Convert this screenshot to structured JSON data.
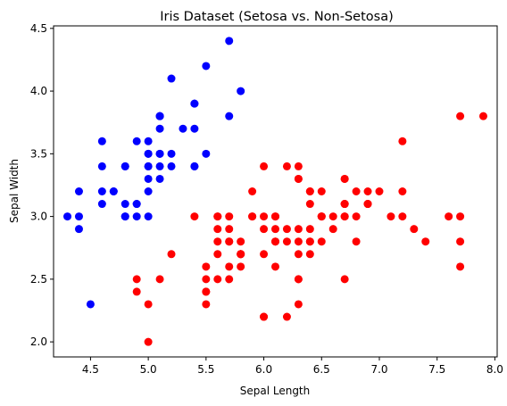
{
  "chart_data": {
    "type": "scatter",
    "title": "Iris Dataset (Setosa vs. Non-Setosa)",
    "xlabel": "Sepal Length",
    "ylabel": "Sepal Width",
    "xlim": [
      4.18,
      8.02
    ],
    "ylim": [
      1.88,
      4.52
    ],
    "grid": false,
    "xticks": [
      "4.5",
      "5.0",
      "5.5",
      "6.0",
      "6.5",
      "7.0",
      "7.5",
      "8.0"
    ],
    "yticks": [
      "2.0",
      "2.5",
      "3.0",
      "3.5",
      "4.0",
      "4.5"
    ],
    "series": [
      {
        "color": "#0000ff",
        "points": [
          [
            5.1,
            3.5
          ],
          [
            4.9,
            3.0
          ],
          [
            4.7,
            3.2
          ],
          [
            4.6,
            3.1
          ],
          [
            5.0,
            3.6
          ],
          [
            5.4,
            3.9
          ],
          [
            4.6,
            3.4
          ],
          [
            5.0,
            3.4
          ],
          [
            4.4,
            2.9
          ],
          [
            4.9,
            3.1
          ],
          [
            5.4,
            3.7
          ],
          [
            4.8,
            3.4
          ],
          [
            4.8,
            3.0
          ],
          [
            4.3,
            3.0
          ],
          [
            5.8,
            4.0
          ],
          [
            5.7,
            4.4
          ],
          [
            5.4,
            3.9
          ],
          [
            5.1,
            3.5
          ],
          [
            5.7,
            3.8
          ],
          [
            5.1,
            3.8
          ],
          [
            5.4,
            3.4
          ],
          [
            5.1,
            3.7
          ],
          [
            4.6,
            3.6
          ],
          [
            5.1,
            3.3
          ],
          [
            4.8,
            3.4
          ],
          [
            5.0,
            3.0
          ],
          [
            5.0,
            3.4
          ],
          [
            5.2,
            3.5
          ],
          [
            5.2,
            3.4
          ],
          [
            4.7,
            3.2
          ],
          [
            4.8,
            3.1
          ],
          [
            5.4,
            3.4
          ],
          [
            5.2,
            4.1
          ],
          [
            5.5,
            4.2
          ],
          [
            4.9,
            3.1
          ],
          [
            5.0,
            3.2
          ],
          [
            5.5,
            3.5
          ],
          [
            4.9,
            3.6
          ],
          [
            4.4,
            3.0
          ],
          [
            5.1,
            3.4
          ],
          [
            5.0,
            3.5
          ],
          [
            4.5,
            2.3
          ],
          [
            4.4,
            3.2
          ],
          [
            5.0,
            3.5
          ],
          [
            5.1,
            3.8
          ],
          [
            4.8,
            3.0
          ],
          [
            5.1,
            3.8
          ],
          [
            4.6,
            3.2
          ],
          [
            5.3,
            3.7
          ],
          [
            5.0,
            3.3
          ]
        ]
      },
      {
        "color": "#ff0000",
        "points": [
          [
            7.0,
            3.2
          ],
          [
            6.4,
            3.2
          ],
          [
            6.9,
            3.1
          ],
          [
            5.5,
            2.3
          ],
          [
            6.5,
            2.8
          ],
          [
            5.7,
            2.8
          ],
          [
            6.3,
            3.3
          ],
          [
            4.9,
            2.4
          ],
          [
            6.6,
            2.9
          ],
          [
            5.2,
            2.7
          ],
          [
            5.0,
            2.0
          ],
          [
            5.9,
            3.0
          ],
          [
            6.0,
            2.2
          ],
          [
            6.1,
            2.9
          ],
          [
            5.6,
            2.9
          ],
          [
            6.7,
            3.1
          ],
          [
            5.6,
            3.0
          ],
          [
            5.8,
            2.7
          ],
          [
            6.2,
            2.2
          ],
          [
            5.6,
            2.5
          ],
          [
            5.9,
            3.2
          ],
          [
            6.1,
            2.8
          ],
          [
            6.3,
            2.5
          ],
          [
            6.1,
            2.8
          ],
          [
            6.4,
            2.9
          ],
          [
            6.6,
            3.0
          ],
          [
            6.8,
            2.8
          ],
          [
            6.7,
            3.0
          ],
          [
            6.0,
            2.9
          ],
          [
            5.7,
            2.6
          ],
          [
            5.5,
            2.4
          ],
          [
            5.5,
            2.4
          ],
          [
            5.8,
            2.7
          ],
          [
            6.0,
            2.7
          ],
          [
            5.4,
            3.0
          ],
          [
            6.0,
            3.4
          ],
          [
            6.7,
            3.1
          ],
          [
            6.3,
            2.3
          ],
          [
            5.6,
            3.0
          ],
          [
            5.5,
            2.5
          ],
          [
            5.5,
            2.6
          ],
          [
            6.1,
            3.0
          ],
          [
            5.8,
            2.6
          ],
          [
            5.0,
            2.3
          ],
          [
            5.6,
            2.7
          ],
          [
            5.7,
            3.0
          ],
          [
            5.7,
            2.9
          ],
          [
            6.2,
            2.9
          ],
          [
            5.1,
            2.5
          ],
          [
            5.7,
            2.8
          ],
          [
            6.3,
            3.3
          ],
          [
            5.8,
            2.7
          ],
          [
            7.1,
            3.0
          ],
          [
            6.3,
            2.9
          ],
          [
            6.5,
            3.0
          ],
          [
            7.6,
            3.0
          ],
          [
            4.9,
            2.5
          ],
          [
            7.3,
            2.9
          ],
          [
            6.7,
            2.5
          ],
          [
            7.2,
            3.6
          ],
          [
            6.5,
            3.2
          ],
          [
            6.4,
            2.7
          ],
          [
            6.8,
            3.0
          ],
          [
            5.7,
            2.5
          ],
          [
            5.8,
            2.8
          ],
          [
            6.4,
            3.2
          ],
          [
            6.5,
            3.0
          ],
          [
            7.7,
            3.8
          ],
          [
            7.7,
            2.6
          ],
          [
            6.0,
            2.2
          ],
          [
            6.9,
            3.2
          ],
          [
            5.6,
            2.8
          ],
          [
            7.7,
            2.8
          ],
          [
            6.3,
            2.7
          ],
          [
            6.7,
            3.3
          ],
          [
            7.2,
            3.2
          ],
          [
            6.2,
            2.8
          ],
          [
            6.1,
            3.0
          ],
          [
            6.4,
            2.8
          ],
          [
            7.2,
            3.0
          ],
          [
            7.4,
            2.8
          ],
          [
            7.9,
            3.8
          ],
          [
            6.4,
            2.8
          ],
          [
            6.3,
            2.8
          ],
          [
            6.1,
            2.6
          ],
          [
            7.7,
            3.0
          ],
          [
            6.3,
            3.4
          ],
          [
            6.4,
            3.1
          ],
          [
            6.0,
            3.0
          ],
          [
            6.9,
            3.1
          ],
          [
            6.7,
            3.1
          ],
          [
            6.9,
            3.1
          ],
          [
            5.8,
            2.7
          ],
          [
            6.8,
            3.2
          ],
          [
            6.7,
            3.3
          ],
          [
            6.7,
            3.0
          ],
          [
            6.3,
            2.5
          ],
          [
            6.5,
            3.0
          ],
          [
            6.2,
            3.4
          ],
          [
            5.9,
            3.0
          ]
        ]
      }
    ]
  }
}
